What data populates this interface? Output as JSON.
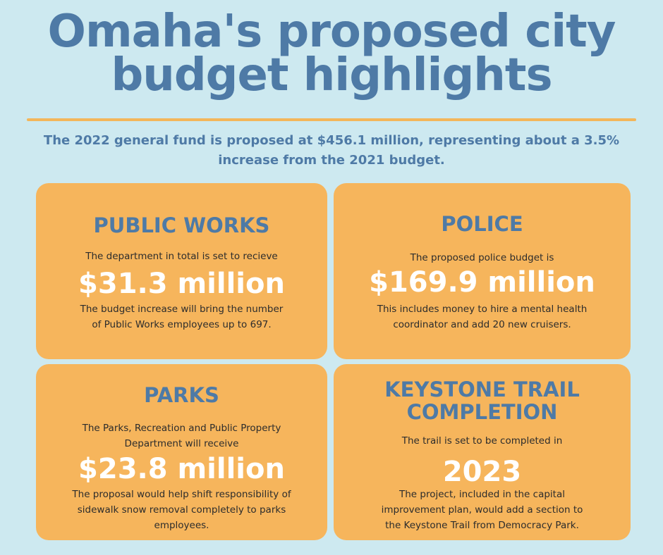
{
  "title": {
    "line1": "Omaha's proposed city",
    "line2": "budget highlights"
  },
  "subtitle": "The 2022 general fund is proposed at $456.1 million, representing about a 3.5% increase from the 2021 budget.",
  "colors": {
    "background": "#cde9f0",
    "accent_blue": "#4e7aa6",
    "card_orange": "#f6b55c",
    "rule": "#f3b65a"
  },
  "cards": [
    {
      "heading": "PUBLIC WORKS",
      "intro": "The department in total is set to recieve",
      "amount": "$31.3 million",
      "detail": "The budget increase will bring the number of Public Works employees up to 697."
    },
    {
      "heading": "POLICE",
      "intro": "The proposed police budget is",
      "amount": "$169.9 million",
      "detail": "This includes money to hire a mental health coordinator and add 20 new cruisers."
    },
    {
      "heading": "PARKS",
      "intro": "The Parks, Recreation and Public Property Department will receive",
      "amount": "$23.8 million",
      "detail": "The proposal would help shift responsibility of sidewalk snow removal completely to parks employees."
    },
    {
      "heading_line1": "KEYSTONE TRAIL",
      "heading_line2": "COMPLETION",
      "intro": "The trail is set to be completed in",
      "amount": "2023",
      "detail": "The project, included in the capital improvement plan, would add a section to the Keystone Trail from Democracy Park."
    }
  ]
}
